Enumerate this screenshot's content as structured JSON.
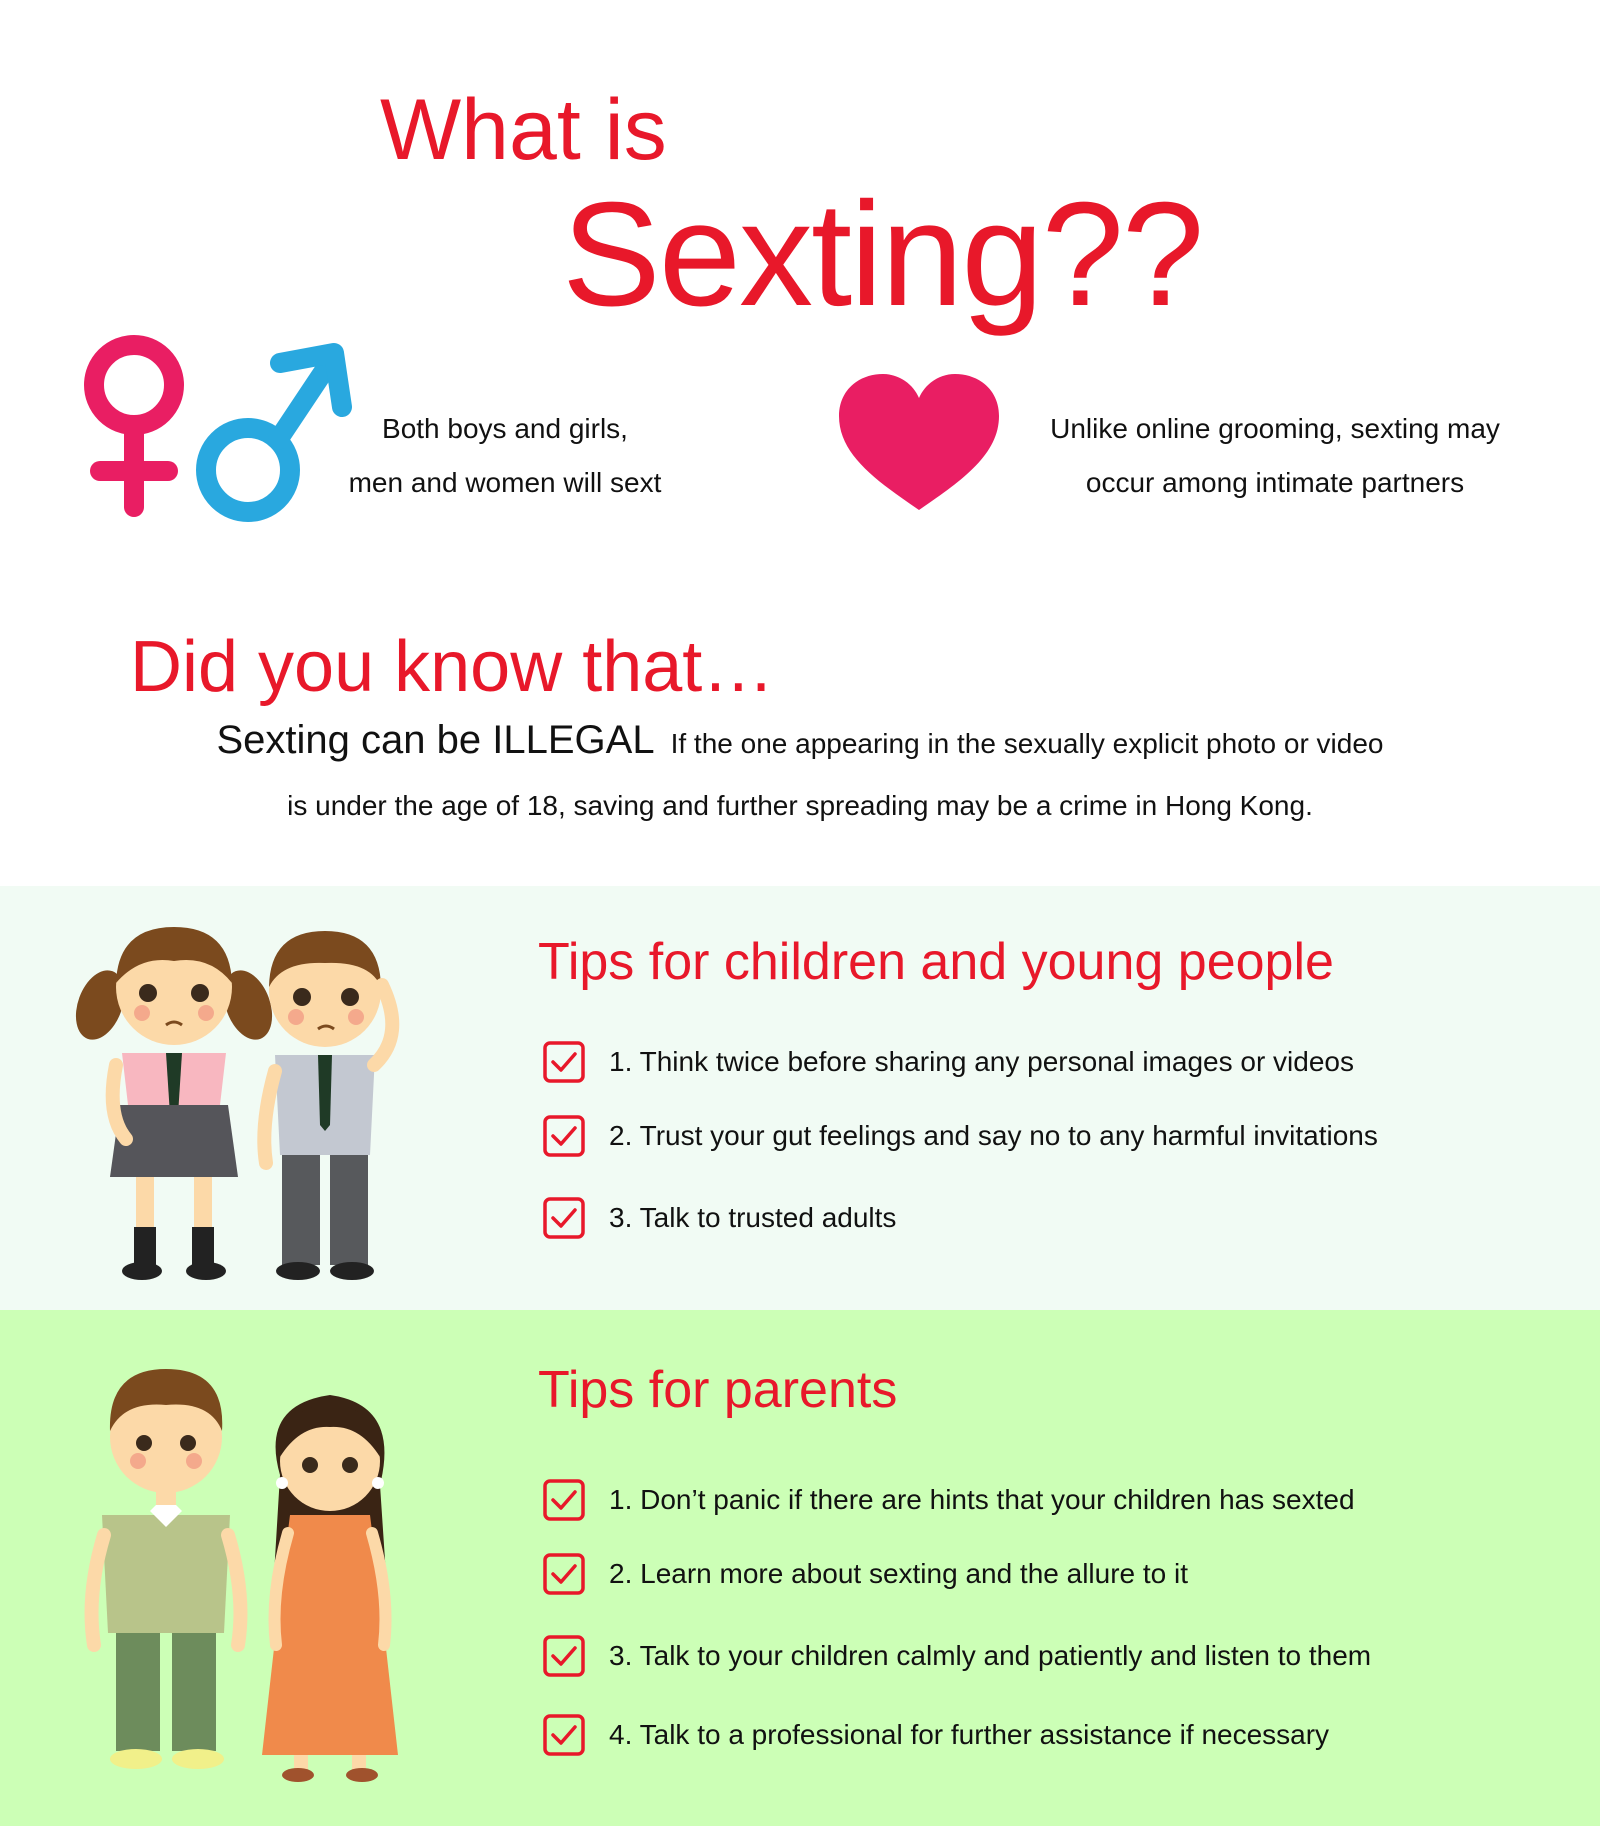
{
  "header": {
    "line1": "What is",
    "line2": "Sexting??"
  },
  "intro": {
    "left_line1": "Both boys and girls,",
    "left_line2": "men and women will sext",
    "right_line1": "Unlike online grooming, sexting may",
    "right_line2": "occur among intimate partners",
    "icons": [
      "female-symbol-icon",
      "male-symbol-icon",
      "heart-icon"
    ]
  },
  "know": {
    "heading": "Did you know that…",
    "strong": "Sexting can be ILLEGAL",
    "rest": "If the one appearing in the sexually explicit photo or video",
    "line2": "is under the age of 18, saving and further spreading may be a crime in Hong Kong."
  },
  "kids_tips": {
    "heading": "Tips for children and young people",
    "items": [
      "1. Think twice before sharing any personal images or videos",
      "2. Trust your gut feelings and say no to any harmful invitations",
      "3. Talk to trusted adults"
    ]
  },
  "parent_tips": {
    "heading": "Tips for parents",
    "items": [
      "1. Don’t panic if there are hints that your children has sexted",
      "2. Learn more about sexting and the allure to it",
      "3. Talk to your children calmly and patiently and listen to them",
      "4. Talk to a professional for further assistance if necessary"
    ]
  },
  "colors": {
    "accent_red": "#e8182a",
    "pink": "#e91e63",
    "blue": "#29a8df",
    "kids_band": "#f1fbf4",
    "parents_band": "#ccffb6"
  }
}
